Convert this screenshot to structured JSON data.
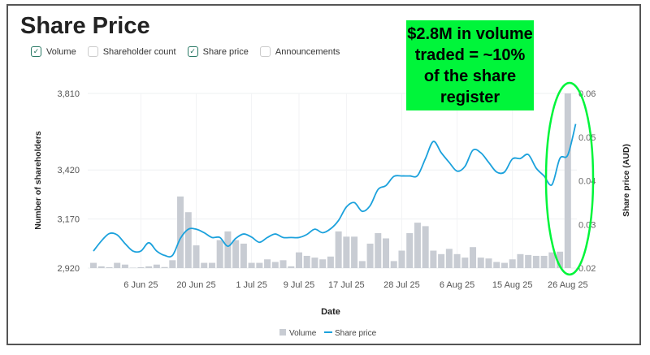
{
  "title": "Share Price",
  "filters": [
    {
      "label": "Volume",
      "checked": true
    },
    {
      "label": "Shareholder count",
      "checked": false
    },
    {
      "label": "Share price",
      "checked": true
    },
    {
      "label": "Announcements",
      "checked": false
    }
  ],
  "annotation": {
    "text": "$2.8M in volume traded = ~10% of the share register",
    "color": "#00f53a"
  },
  "chart_data": {
    "type": "bar+line",
    "xlabel": "Date",
    "ylabel_left": "Number of shareholders",
    "ylabel_right": "Share price (AUD)",
    "ylim_left": [
      2920,
      3810
    ],
    "yticks_left": [
      "3,810",
      "3,420",
      "3,170",
      "2,920"
    ],
    "yticks_left_values": [
      3810,
      3420,
      3170,
      2920
    ],
    "ylim_right": [
      0.02,
      0.06
    ],
    "yticks_right": [
      "0.06",
      "0.05",
      "0.04",
      "0.03",
      "0.02"
    ],
    "yticks_right_values": [
      0.06,
      0.05,
      0.04,
      0.03,
      0.02
    ],
    "x_ticks": [
      {
        "index": 6,
        "label": "6 Jun 25"
      },
      {
        "index": 13,
        "label": "20 Jun 25"
      },
      {
        "index": 20,
        "label": "1 Jul 25"
      },
      {
        "index": 26,
        "label": "9 Jul 25"
      },
      {
        "index": 32,
        "label": "17 Jul 25"
      },
      {
        "index": 39,
        "label": "28 Jul 25"
      },
      {
        "index": 46,
        "label": "6 Aug 25"
      },
      {
        "index": 53,
        "label": "15 Aug 25"
      },
      {
        "index": 60,
        "label": "26 Aug 25"
      }
    ],
    "grid": true,
    "legend_position": "bottom",
    "series": [
      {
        "name": "Volume",
        "type": "bar",
        "color": "#c8ccd3",
        "unit": "relative % of max",
        "values": [
          3,
          1,
          0.5,
          3,
          2,
          0,
          0.5,
          1,
          2,
          0.6,
          4.5,
          41,
          32,
          13,
          3,
          3,
          16,
          21,
          16,
          14,
          3,
          3,
          5,
          3.5,
          4.5,
          1,
          9,
          7,
          6,
          5,
          6.6,
          21,
          18,
          18,
          4,
          14,
          20,
          17,
          4,
          10,
          20,
          26,
          24,
          10,
          8,
          11,
          8,
          6,
          12,
          6,
          5.5,
          3.5,
          3,
          5,
          8,
          7.5,
          7,
          7,
          9,
          9.4,
          100
        ]
      },
      {
        "name": "Share price",
        "type": "line",
        "color": "#1ba1dc",
        "values": [
          0.0239,
          0.0262,
          0.0279,
          0.0276,
          0.0256,
          0.0239,
          0.0239,
          0.0258,
          0.0239,
          0.0229,
          0.0229,
          0.0268,
          0.0289,
          0.0289,
          0.0281,
          0.027,
          0.027,
          0.025,
          0.0268,
          0.0278,
          0.0271,
          0.0259,
          0.027,
          0.0278,
          0.027,
          0.027,
          0.027,
          0.0277,
          0.0289,
          0.0281,
          0.029,
          0.0309,
          0.034,
          0.035,
          0.033,
          0.0343,
          0.038,
          0.0389,
          0.041,
          0.0411,
          0.0411,
          0.0412,
          0.0451,
          0.049,
          0.0464,
          0.0442,
          0.0422,
          0.0433,
          0.047,
          0.0464,
          0.0442,
          0.042,
          0.042,
          0.045,
          0.0451,
          0.046,
          0.0429,
          0.0411,
          0.0391,
          0.0451,
          0.0459,
          0.053
        ]
      }
    ]
  }
}
